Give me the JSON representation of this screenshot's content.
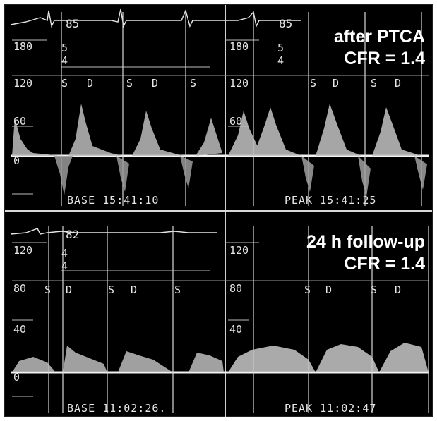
{
  "panels": [
    {
      "id": "after-ptca",
      "caption_line1": "after PTCA",
      "caption_line2": "CFR = 1.4",
      "hr_label": "85",
      "scale_top": "180",
      "small_labels": [
        "5",
        "4"
      ],
      "velocity_scale": [
        "120",
        "60",
        "0"
      ],
      "phase_labels_left": [
        "S",
        "D",
        "S",
        "D",
        "S"
      ],
      "phase_labels_right": [
        "S",
        "D",
        "S",
        "D"
      ],
      "base_stamp": "BASE 15:41:10",
      "peak_stamp": "PEAK 15:41:25"
    },
    {
      "id": "follow-up",
      "caption_line1": "24 h follow-up",
      "caption_line2": "CFR = 1.4",
      "hr_label": "82",
      "scale_top": "120",
      "small_labels": [
        "4",
        "4"
      ],
      "velocity_scale": [
        "80",
        "40",
        "0"
      ],
      "phase_labels_left": [
        "S",
        "D",
        "S",
        "D",
        "S"
      ],
      "phase_labels_right": [
        "S",
        "D",
        "S",
        "D"
      ],
      "base_stamp": "BASE 11:02:26.",
      "peak_stamp": "PEAK 11:02:47"
    }
  ]
}
